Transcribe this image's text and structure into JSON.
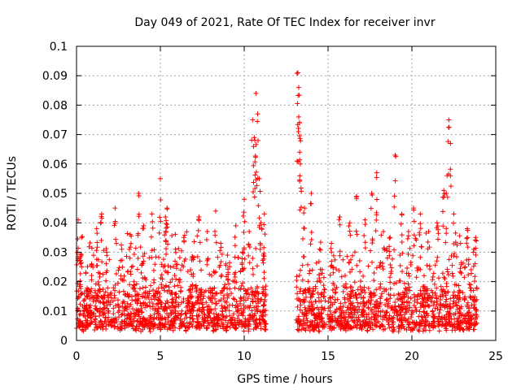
{
  "chart_data": {
    "type": "scatter",
    "title": "Day 049 of 2021, Rate Of TEC Index for receiver invr",
    "xlabel": "GPS time / hours",
    "ylabel": "ROTI / TECUs",
    "xlim": [
      0,
      25
    ],
    "ylim": [
      0,
      0.1
    ],
    "x_ticks": [
      0,
      5,
      10,
      15,
      20,
      25
    ],
    "x_tick_labels": [
      "0",
      "5",
      "10",
      "15",
      "20",
      "25"
    ],
    "y_ticks": [
      0,
      0.01,
      0.02,
      0.03,
      0.04,
      0.05,
      0.06,
      0.07,
      0.08,
      0.09,
      0.1
    ],
    "y_tick_labels": [
      "0",
      "0.01",
      "0.02",
      "0.03",
      "0.04",
      "0.05",
      "0.06",
      "0.07",
      "0.08",
      "0.09",
      "0.1"
    ],
    "grid": true,
    "marker": "+",
    "color": "#ff0000",
    "data_gap_hours": [
      11.3,
      13.1
    ],
    "series": [
      {
        "name": "ROTI",
        "points": [
          [
            0.1,
            0.041
          ],
          [
            0.2,
            0.027
          ],
          [
            0.3,
            0.035
          ],
          [
            0.6,
            0.012
          ],
          [
            0.9,
            0.026
          ],
          [
            1.2,
            0.038
          ],
          [
            1.5,
            0.043
          ],
          [
            1.8,
            0.03
          ],
          [
            2.3,
            0.045
          ],
          [
            2.7,
            0.031
          ],
          [
            3.2,
            0.036
          ],
          [
            3.7,
            0.05
          ],
          [
            4.0,
            0.039
          ],
          [
            4.5,
            0.043
          ],
          [
            5.0,
            0.055
          ],
          [
            5.3,
            0.042
          ],
          [
            5.4,
            0.045
          ],
          [
            5.9,
            0.031
          ],
          [
            6.4,
            0.035
          ],
          [
            6.9,
            0.028
          ],
          [
            7.3,
            0.042
          ],
          [
            7.8,
            0.037
          ],
          [
            8.3,
            0.044
          ],
          [
            8.6,
            0.033
          ],
          [
            9.0,
            0.029
          ],
          [
            9.5,
            0.039
          ],
          [
            9.9,
            0.03
          ],
          [
            10.0,
            0.048
          ],
          [
            10.3,
            0.037
          ],
          [
            10.5,
            0.075
          ],
          [
            10.6,
            0.069
          ],
          [
            10.7,
            0.084
          ],
          [
            10.8,
            0.077
          ],
          [
            10.9,
            0.055
          ],
          [
            11.0,
            0.04
          ],
          [
            11.2,
            0.043
          ],
          [
            13.2,
            0.091
          ],
          [
            13.25,
            0.086
          ],
          [
            13.3,
            0.074
          ],
          [
            13.35,
            0.06
          ],
          [
            13.6,
            0.045
          ],
          [
            14.0,
            0.05
          ],
          [
            14.5,
            0.031
          ],
          [
            15.2,
            0.033
          ],
          [
            15.7,
            0.042
          ],
          [
            16.3,
            0.04
          ],
          [
            16.7,
            0.049
          ],
          [
            17.2,
            0.041
          ],
          [
            17.6,
            0.05
          ],
          [
            17.9,
            0.057
          ],
          [
            18.3,
            0.037
          ],
          [
            18.7,
            0.035
          ],
          [
            19.0,
            0.063
          ],
          [
            19.4,
            0.043
          ],
          [
            19.8,
            0.037
          ],
          [
            20.1,
            0.045
          ],
          [
            20.5,
            0.043
          ],
          [
            21.0,
            0.037
          ],
          [
            21.5,
            0.04
          ],
          [
            21.9,
            0.051
          ],
          [
            22.1,
            0.056
          ],
          [
            22.2,
            0.075
          ],
          [
            22.3,
            0.067
          ],
          [
            22.5,
            0.043
          ],
          [
            22.9,
            0.033
          ],
          [
            23.3,
            0.038
          ],
          [
            23.7,
            0.031
          ],
          [
            23.8,
            0.035
          ]
        ]
      }
    ]
  }
}
